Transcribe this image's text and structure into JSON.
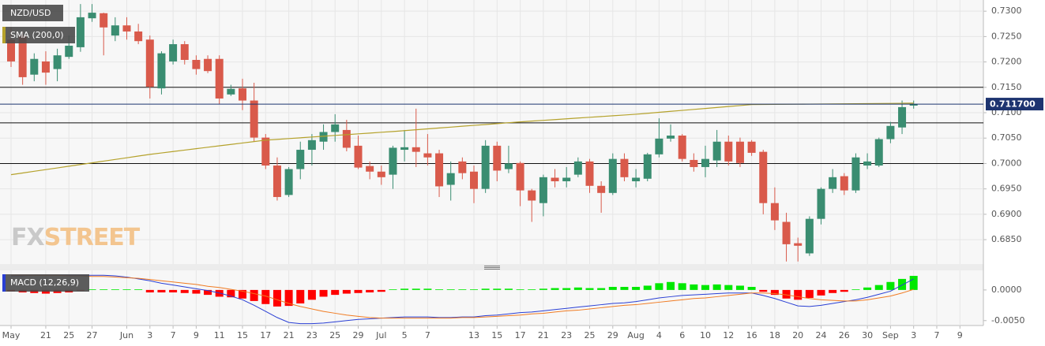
{
  "chart_data": [
    {
      "type": "candlestick",
      "title": "NZD/USD",
      "categories": [
        "May",
        null,
        null,
        "21",
        null,
        "25",
        null,
        "27",
        null,
        null,
        "Jun",
        null,
        "3",
        null,
        "7",
        null,
        "9",
        null,
        "11",
        null,
        "15",
        null,
        "17",
        null,
        "21",
        null,
        "23",
        null,
        "25",
        null,
        "29",
        null,
        "Jul",
        null,
        "5",
        null,
        "7",
        null,
        null,
        null,
        "13",
        null,
        "15",
        null,
        "17",
        null,
        "21",
        null,
        "23",
        null,
        "25",
        null,
        "29",
        null,
        "Aug",
        null,
        "4",
        null,
        "6",
        null,
        "10",
        null,
        "12",
        null,
        "16",
        null,
        "18",
        null,
        "20",
        null,
        "24",
        null,
        "26",
        null,
        "30",
        null,
        "Sep",
        null,
        "3",
        null,
        "7",
        null,
        "9"
      ],
      "open": [
        0.7244,
        0.7252,
        0.7175,
        0.7201,
        0.7186,
        0.721,
        0.7229,
        0.7286,
        0.7296,
        0.7252,
        0.7272,
        0.726,
        0.7244,
        0.7148,
        0.7201,
        0.7235,
        0.7204,
        0.7206,
        0.7206,
        0.7136,
        0.7148,
        0.7124,
        0.7051,
        0.6996,
        0.6938,
        0.6989,
        0.7027,
        0.7043,
        0.7062,
        0.7066,
        0.7035,
        0.6995,
        0.6984,
        0.6978,
        0.7027,
        0.7032,
        0.702,
        0.702,
        0.6958,
        0.7004,
        0.6984,
        0.695,
        0.7035,
        0.6989,
        0.7001,
        0.6947,
        0.6922,
        0.6972,
        0.6965,
        0.6978,
        0.7004,
        0.6956,
        0.6942,
        0.7009,
        0.6965,
        0.697,
        0.7018,
        0.7049,
        0.7055,
        0.7007,
        0.6993,
        0.7006,
        0.7043,
        0.7043,
        0.7043,
        0.7023,
        0.6922,
        0.6885,
        0.6843,
        0.6823,
        0.6891,
        0.695,
        0.6975,
        0.6947,
        0.6996,
        0.6996,
        0.7048,
        0.7071,
        0.7114,
        null,
        null,
        null,
        null
      ],
      "high": [
        0.7268,
        0.726,
        0.7217,
        0.7221,
        0.7226,
        0.7252,
        0.7314,
        0.7314,
        0.7297,
        0.7288,
        0.7288,
        0.7275,
        0.7252,
        0.7221,
        0.7244,
        0.7241,
        0.7213,
        0.7213,
        0.7213,
        0.7155,
        0.7167,
        0.7159,
        0.7058,
        0.7012,
        0.6993,
        0.7043,
        0.7058,
        0.7077,
        0.7097,
        0.7086,
        0.7055,
        0.7004,
        0.6996,
        0.7035,
        0.7066,
        0.7108,
        0.7058,
        0.7027,
        0.7004,
        0.7012,
        0.6996,
        0.7046,
        0.7043,
        0.7035,
        0.7004,
        0.695,
        0.6978,
        0.6989,
        0.6993,
        0.7012,
        0.7009,
        0.6965,
        0.702,
        0.702,
        0.6989,
        0.7021,
        0.7089,
        0.7077,
        0.7058,
        0.702,
        0.7035,
        0.7066,
        0.7055,
        0.7051,
        0.7046,
        0.7027,
        0.6953,
        0.6903,
        0.6854,
        0.6896,
        0.6953,
        0.6989,
        0.6981,
        0.702,
        0.702,
        0.7051,
        0.7082,
        0.7124,
        0.7124,
        null,
        null,
        null,
        null
      ],
      "low": [
        0.719,
        0.7155,
        0.7162,
        0.7155,
        0.7162,
        0.7206,
        0.722,
        0.7279,
        0.7213,
        0.7241,
        0.7244,
        0.7235,
        0.7128,
        0.7136,
        0.7195,
        0.7195,
        0.7175,
        0.7178,
        0.7117,
        0.7133,
        0.7105,
        0.7043,
        0.6989,
        0.6927,
        0.6934,
        0.6969,
        0.6996,
        0.7027,
        0.7043,
        0.7024,
        0.6989,
        0.6969,
        0.6958,
        0.695,
        0.7004,
        0.6993,
        0.6996,
        0.6934,
        0.6927,
        0.6969,
        0.6922,
        0.6942,
        0.6965,
        0.6981,
        0.6916,
        0.6885,
        0.6896,
        0.6953,
        0.6953,
        0.6973,
        0.6942,
        0.6903,
        0.6938,
        0.6965,
        0.6953,
        0.6965,
        0.7012,
        0.7043,
        0.7004,
        0.6984,
        0.6973,
        0.6993,
        0.6996,
        0.6993,
        0.7015,
        0.69,
        0.6869,
        0.6807,
        0.6807,
        0.6818,
        0.688,
        0.6942,
        0.6938,
        0.6942,
        0.6989,
        0.6993,
        0.704,
        0.7058,
        0.7108,
        null,
        null,
        null,
        null
      ],
      "close": [
        0.7201,
        0.717,
        0.7206,
        0.7179,
        0.7213,
        0.7232,
        0.7288,
        0.7297,
        0.7268,
        0.7272,
        0.726,
        0.7241,
        0.7151,
        0.7217,
        0.7235,
        0.7204,
        0.7186,
        0.7182,
        0.7128,
        0.7147,
        0.7124,
        0.7051,
        0.6996,
        0.6934,
        0.6989,
        0.7027,
        0.7046,
        0.7062,
        0.7077,
        0.7031,
        0.6992,
        0.6984,
        0.6973,
        0.7031,
        0.7032,
        0.7023,
        0.7012,
        0.6955,
        0.6981,
        0.6981,
        0.695,
        0.7035,
        0.6986,
        0.7,
        0.6947,
        0.6927,
        0.6973,
        0.6965,
        0.6972,
        0.7004,
        0.6956,
        0.6942,
        0.7009,
        0.6973,
        0.6972,
        0.7018,
        0.7049,
        0.7055,
        0.7009,
        0.6993,
        0.7009,
        0.7043,
        0.7004,
        0.7001,
        0.7021,
        0.6922,
        0.6888,
        0.6841,
        0.6838,
        0.6891,
        0.695,
        0.6973,
        0.6947,
        0.7012,
        0.7004,
        0.7048,
        0.7074,
        0.7111,
        0.7117,
        null,
        null,
        null,
        null
      ],
      "up_color": "#3a8d71",
      "down_color": "#d95a4b",
      "ylim": [
        0.6802,
        0.7322
      ],
      "yticks": [
        {
          "value": 0.685,
          "label": "0.6850"
        },
        {
          "value": 0.69,
          "label": "0.6900"
        },
        {
          "value": 0.695,
          "label": "0.6950"
        },
        {
          "value": 0.7,
          "label": "0.7000"
        },
        {
          "value": 0.705,
          "label": "0.7050"
        },
        {
          "value": 0.71,
          "label": "0.7100"
        },
        {
          "value": 0.715,
          "label": "0.7150"
        },
        {
          "value": 0.72,
          "label": "0.7200"
        },
        {
          "value": 0.725,
          "label": "0.7250"
        },
        {
          "value": 0.73,
          "label": "0.7300"
        }
      ],
      "grid": true,
      "overlays": [
        {
          "name": "SMA (200,0)",
          "color": "#b5a22c",
          "values": [
            0.6978,
            0.69813,
            0.69847,
            0.6988,
            0.69913,
            0.69947,
            0.6998,
            0.70013,
            0.70047,
            0.7008,
            0.70113,
            0.70147,
            0.7018,
            0.70208,
            0.70236,
            0.70264,
            0.70292,
            0.7032,
            0.70348,
            0.70376,
            0.70404,
            0.70432,
            0.7046,
            0.70475,
            0.70491,
            0.70506,
            0.70522,
            0.70537,
            0.70553,
            0.70568,
            0.70584,
            0.70599,
            0.70615,
            0.7063,
            0.70647,
            0.70665,
            0.70682,
            0.70699,
            0.70716,
            0.70734,
            0.70751,
            0.70768,
            0.70785,
            0.70803,
            0.7082,
            0.70835,
            0.7085,
            0.70865,
            0.7088,
            0.70895,
            0.7091,
            0.70925,
            0.7094,
            0.70955,
            0.7097,
            0.70989,
            0.71008,
            0.71027,
            0.71046,
            0.71065,
            0.71084,
            0.71103,
            0.71122,
            0.71141,
            0.7116,
            0.71162,
            0.71164,
            0.71166,
            0.71168,
            0.7117,
            0.71172,
            0.71174,
            0.71176,
            0.71178,
            0.7118,
            0.71182,
            0.71184,
            0.71186,
            0.71188,
            null,
            null,
            null,
            null
          ]
        }
      ],
      "hlines": [
        0.715,
        0.708,
        0.7
      ],
      "hline_color": "#111111",
      "last_price": {
        "value": 0.7117,
        "label": "0.711700",
        "color": "#1d3470"
      },
      "watermark": [
        "FX",
        "STREET"
      ]
    },
    {
      "type": "macd",
      "title": "MACD (12,26,9)",
      "ylim": [
        -0.0058,
        0.0032
      ],
      "yticks": [
        {
          "value": -0.005,
          "label": "-0.0050"
        },
        {
          "value": 0,
          "label": "0.0000"
        }
      ],
      "histogram": {
        "up_color": "#00e800",
        "down_color": "#ff0000",
        "values": [
          -0.0002,
          -0.0004,
          -0.0005,
          -0.0006,
          -0.0005,
          -0.0004,
          -0.0001,
          0.0001,
          0.0001,
          0.0001,
          0.0001,
          0.0001,
          -0.0004,
          -0.0004,
          -0.0004,
          -0.0005,
          -0.0006,
          -0.0008,
          -0.0011,
          -0.0012,
          -0.0014,
          -0.0018,
          -0.0023,
          -0.0027,
          -0.0026,
          -0.0022,
          -0.0016,
          -0.0011,
          -0.0008,
          -0.0006,
          -0.0005,
          -0.0004,
          -0.0003,
          0.0001,
          0.0002,
          0.0002,
          0.0002,
          0.0001,
          0.0001,
          0.0001,
          0.0001,
          0.0002,
          0.0002,
          0.0002,
          0.0001,
          0.0001,
          0.0002,
          0.0003,
          0.0003,
          0.0004,
          0.0003,
          0.0003,
          0.0005,
          0.0005,
          0.0005,
          0.0007,
          0.0011,
          0.0013,
          0.0011,
          0.0009,
          0.0008,
          0.0009,
          0.0008,
          0.0007,
          0.0005,
          -0.0003,
          -0.0008,
          -0.0014,
          -0.0016,
          -0.0013,
          -0.0009,
          -0.0005,
          -0.0003,
          0.0001,
          0.0004,
          0.0008,
          0.0013,
          0.0018,
          0.0023,
          null,
          null,
          null,
          null
        ]
      },
      "series": [
        {
          "color": "#2a3fd4",
          "values": [
            0.0023,
            0.0023,
            0.0024,
            0.0024,
            0.0024,
            0.0024,
            0.0024,
            0.0024,
            0.0024,
            0.0023,
            0.0021,
            0.0018,
            0.0015,
            0.0011,
            0.0008,
            0.0005,
            0.0002,
            -0.0001,
            -0.0005,
            -0.001,
            -0.0016,
            -0.0025,
            -0.0035,
            -0.0045,
            -0.0053,
            -0.0055,
            -0.0055,
            -0.0054,
            -0.0052,
            -0.005,
            -0.0048,
            -0.0047,
            -0.0046,
            -0.0045,
            -0.0044,
            -0.0044,
            -0.0044,
            -0.0045,
            -0.0045,
            -0.0044,
            -0.0044,
            -0.0042,
            -0.0041,
            -0.0039,
            -0.0037,
            -0.0036,
            -0.0034,
            -0.0032,
            -0.003,
            -0.0028,
            -0.0026,
            -0.0024,
            -0.0022,
            -0.0021,
            -0.0019,
            -0.0016,
            -0.0013,
            -0.0011,
            -0.0009,
            -0.0008,
            -0.0007,
            -0.0006,
            -0.0005,
            -0.0005,
            -0.0005,
            -0.0009,
            -0.0014,
            -0.002,
            -0.0026,
            -0.0027,
            -0.0025,
            -0.0022,
            -0.0019,
            -0.0016,
            -0.0012,
            -0.0007,
            -0.0002,
            0.0008,
            0.0018,
            null,
            null,
            null,
            null
          ]
        },
        {
          "color": "#f07b22",
          "values": [
            0.0024,
            0.0024,
            0.0024,
            0.0024,
            0.0024,
            0.0023,
            0.0023,
            0.0022,
            0.0022,
            0.0021,
            0.002,
            0.0019,
            0.0017,
            0.0015,
            0.0013,
            0.0011,
            0.0009,
            0.0006,
            0.0004,
            0.0001,
            -0.0002,
            -0.0006,
            -0.001,
            -0.0016,
            -0.0022,
            -0.0027,
            -0.0031,
            -0.0035,
            -0.0038,
            -0.0041,
            -0.0043,
            -0.0045,
            -0.0046,
            -0.0046,
            -0.0046,
            -0.0046,
            -0.0046,
            -0.0046,
            -0.0046,
            -0.0045,
            -0.0045,
            -0.0044,
            -0.0043,
            -0.0042,
            -0.0041,
            -0.0039,
            -0.0038,
            -0.0036,
            -0.0034,
            -0.0033,
            -0.0031,
            -0.0029,
            -0.0027,
            -0.0025,
            -0.0024,
            -0.0022,
            -0.002,
            -0.0018,
            -0.0016,
            -0.0014,
            -0.0013,
            -0.0011,
            -0.0009,
            -0.0007,
            -0.0005,
            -0.0005,
            -0.0006,
            -0.0008,
            -0.0011,
            -0.0014,
            -0.0016,
            -0.0017,
            -0.0018,
            -0.0018,
            -0.0016,
            -0.0013,
            -0.001,
            -0.0005,
            0.0001,
            null,
            null,
            null,
            null
          ]
        }
      ]
    }
  ]
}
